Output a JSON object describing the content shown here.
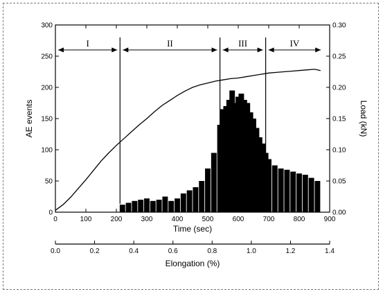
{
  "chart_data": {
    "type": "bar",
    "x_axis": {
      "label": "Time (sec)",
      "range": [
        0,
        900
      ],
      "ticks": [
        0,
        100,
        200,
        300,
        400,
        500,
        600,
        700,
        800,
        900
      ]
    },
    "x2_axis": {
      "label": "Elongation (%)",
      "range": [
        0.0,
        1.4
      ],
      "ticks": [
        "0.0",
        "0.2",
        "0.4",
        "0.6",
        "0.8",
        "1.0",
        "1.2",
        "1.4"
      ]
    },
    "y_axis": {
      "label": "AE events",
      "range": [
        0,
        300
      ],
      "ticks": [
        0,
        50,
        100,
        150,
        200,
        250,
        300
      ]
    },
    "y2_axis": {
      "label": "Load (kN)",
      "range": [
        0.0,
        0.3
      ],
      "ticks": [
        "0.00",
        "0.05",
        "0.10",
        "0.15",
        "0.20",
        "0.25",
        "0.30"
      ]
    },
    "regions": [
      {
        "label": "I",
        "start": 0,
        "end": 212
      },
      {
        "label": "II",
        "start": 212,
        "end": 540
      },
      {
        "label": "III",
        "start": 540,
        "end": 690
      },
      {
        "label": "IV",
        "start": 690,
        "end": 880
      }
    ],
    "boundaries": [
      212,
      540,
      690
    ],
    "series": [
      {
        "type": "bar",
        "axis": "left",
        "x": [
          220,
          240,
          260,
          280,
          300,
          320,
          340,
          360,
          380,
          400,
          420,
          440,
          460,
          480,
          500,
          520,
          540,
          550,
          560,
          570,
          580,
          590,
          600,
          610,
          620,
          630,
          640,
          650,
          660,
          670,
          680,
          690,
          700,
          720,
          740,
          760,
          780,
          800,
          820,
          840,
          860
        ],
        "values": [
          12,
          15,
          18,
          20,
          22,
          18,
          20,
          25,
          18,
          22,
          30,
          35,
          40,
          50,
          70,
          95,
          140,
          165,
          170,
          180,
          195,
          175,
          185,
          190,
          180,
          175,
          160,
          150,
          135,
          120,
          110,
          95,
          85,
          75,
          70,
          68,
          65,
          62,
          60,
          55,
          50
        ]
      },
      {
        "type": "line",
        "axis": "right",
        "x": [
          0,
          25,
          50,
          75,
          100,
          125,
          150,
          175,
          200,
          225,
          250,
          275,
          300,
          325,
          350,
          375,
          400,
          425,
          450,
          475,
          500,
          525,
          550,
          575,
          600,
          625,
          650,
          675,
          700,
          725,
          750,
          775,
          800,
          825,
          850,
          870
        ],
        "values": [
          0.003,
          0.012,
          0.024,
          0.038,
          0.052,
          0.067,
          0.082,
          0.095,
          0.107,
          0.118,
          0.129,
          0.14,
          0.15,
          0.161,
          0.171,
          0.179,
          0.187,
          0.194,
          0.2,
          0.204,
          0.207,
          0.21,
          0.212,
          0.214,
          0.215,
          0.217,
          0.219,
          0.221,
          0.223,
          0.224,
          0.225,
          0.226,
          0.227,
          0.228,
          0.229,
          0.227
        ]
      }
    ]
  }
}
